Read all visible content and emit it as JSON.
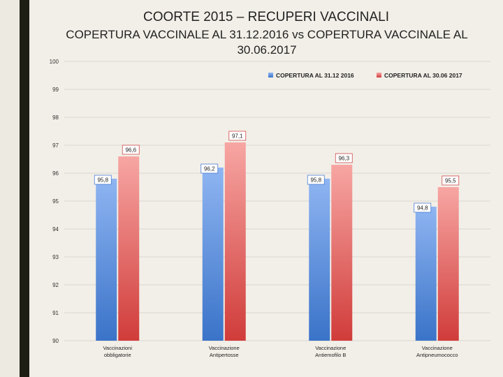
{
  "slide": {
    "title": "COORTE 2015 – RECUPERI VACCINALI",
    "subtitle_line1": "COPERTURA VACCINALE AL 31.12.2016 vs COPERTURA VACCINALE AL",
    "subtitle_line2": "30.06.2017"
  },
  "chart_data": {
    "type": "bar",
    "categories": [
      [
        "Vaccinazioni",
        "obbligatorie"
      ],
      [
        "Vaccinazione",
        "Antipertosse"
      ],
      [
        "Vaccinazione",
        "Antiemofilo B"
      ],
      [
        "Vaccinazione",
        "Antipneumococco"
      ]
    ],
    "series": [
      {
        "name": "COPERTURA AL 31.12 2016",
        "values": [
          95.8,
          96.2,
          95.8,
          94.8
        ],
        "labels": [
          "95,8",
          "96,2",
          "95,8",
          "94,8"
        ],
        "color_top": "#8fb5f2",
        "color_bottom": "#3a73c8"
      },
      {
        "name": "COPERTURA AL 30.06 2017",
        "values": [
          96.6,
          97.1,
          96.3,
          95.5
        ],
        "labels": [
          "96,6",
          "97,1",
          "96,3",
          "95,5"
        ],
        "color_top": "#f7a6a3",
        "color_bottom": "#d03c3a"
      }
    ],
    "ylim": [
      90,
      100
    ],
    "yticks": [
      90,
      91,
      92,
      93,
      94,
      95,
      96,
      97,
      98,
      99,
      100
    ],
    "grid": true,
    "legend": "top-right",
    "data_labels": true
  }
}
